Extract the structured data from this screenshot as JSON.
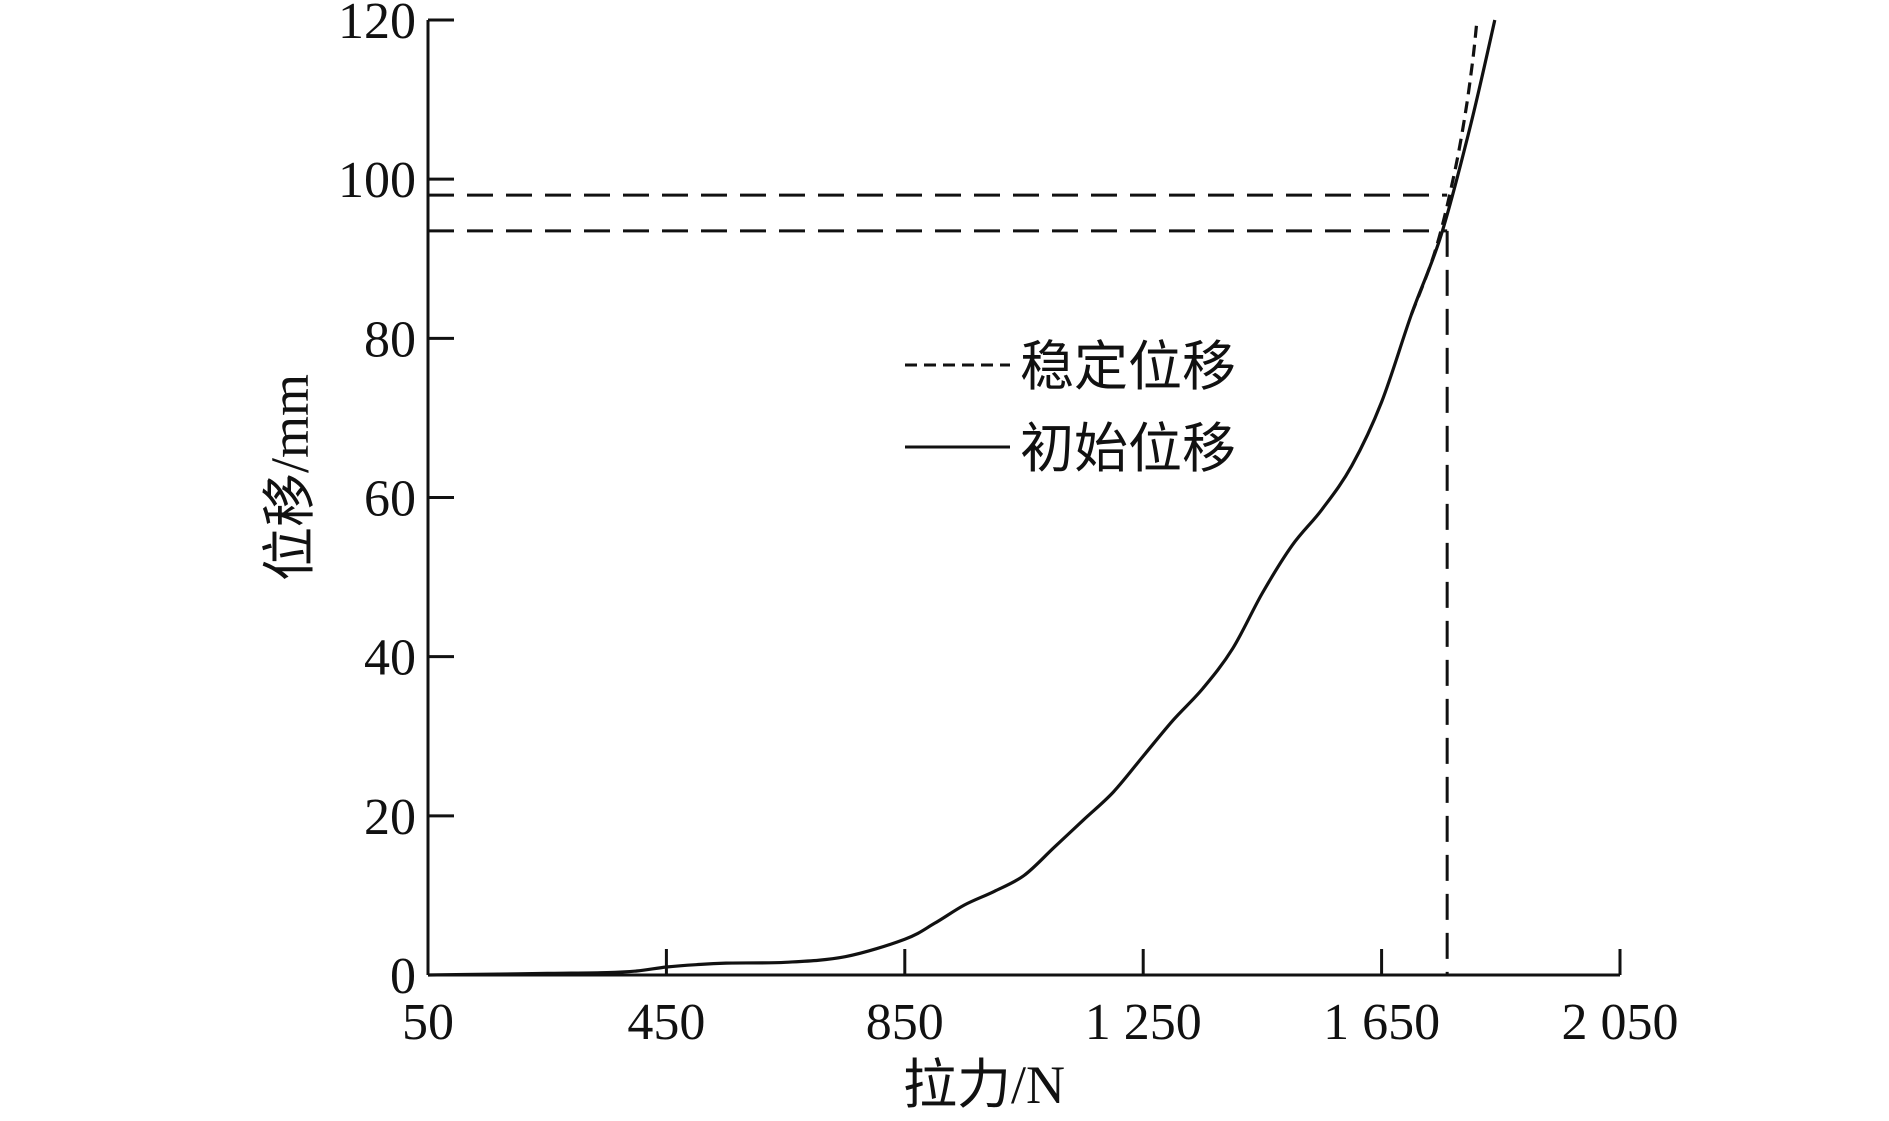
{
  "chart_data": {
    "type": "line",
    "xlabel": "拉力/N",
    "ylabel": "位移/mm",
    "xlim": [
      50,
      2050
    ],
    "ylim": [
      0,
      120
    ],
    "x_ticks": [
      {
        "value": 50,
        "label": "50"
      },
      {
        "value": 450,
        "label": "450"
      },
      {
        "value": 850,
        "label": "850"
      },
      {
        "value": 1250,
        "label": "1 250"
      },
      {
        "value": 1650,
        "label": "1 650"
      },
      {
        "value": 2050,
        "label": "2 050"
      }
    ],
    "y_ticks": [
      {
        "value": 0,
        "label": "0"
      },
      {
        "value": 20,
        "label": "20"
      },
      {
        "value": 40,
        "label": "40"
      },
      {
        "value": 60,
        "label": "60"
      },
      {
        "value": 80,
        "label": "80"
      },
      {
        "value": 100,
        "label": "100"
      },
      {
        "value": 120,
        "label": "120"
      }
    ],
    "grid": false,
    "legend_position": "center",
    "series": [
      {
        "name": "初始位移",
        "style": "solid",
        "color": "#111111",
        "points": [
          [
            50,
            0
          ],
          [
            150,
            0.1
          ],
          [
            250,
            0.2
          ],
          [
            350,
            0.3
          ],
          [
            400,
            0.5
          ],
          [
            450,
            1.0
          ],
          [
            500,
            1.3
          ],
          [
            550,
            1.5
          ],
          [
            650,
            1.6
          ],
          [
            750,
            2.3
          ],
          [
            850,
            4.5
          ],
          [
            900,
            6.5
          ],
          [
            950,
            8.8
          ],
          [
            1000,
            10.5
          ],
          [
            1050,
            12.5
          ],
          [
            1100,
            16
          ],
          [
            1150,
            19.5
          ],
          [
            1200,
            23
          ],
          [
            1250,
            27.5
          ],
          [
            1300,
            32
          ],
          [
            1350,
            36
          ],
          [
            1400,
            41
          ],
          [
            1450,
            48
          ],
          [
            1500,
            54
          ],
          [
            1550,
            58.5
          ],
          [
            1600,
            64
          ],
          [
            1650,
            72
          ],
          [
            1700,
            83
          ],
          [
            1750,
            93
          ],
          [
            1800,
            107
          ],
          [
            1840,
            120
          ]
        ]
      },
      {
        "name": "稳定位移",
        "style": "dashed",
        "color": "#111111",
        "points": [
          [
            1700,
            83
          ],
          [
            1740,
            91
          ],
          [
            1770,
            100
          ],
          [
            1790,
            108
          ],
          [
            1803,
            115
          ],
          [
            1810,
            120
          ]
        ]
      }
    ],
    "reference_lines": [
      {
        "orientation": "horizontal",
        "value": 98,
        "style": "dashed"
      },
      {
        "orientation": "horizontal",
        "value": 93.5,
        "style": "dashed"
      },
      {
        "orientation": "vertical",
        "value": 1760,
        "style": "dashed"
      }
    ]
  }
}
